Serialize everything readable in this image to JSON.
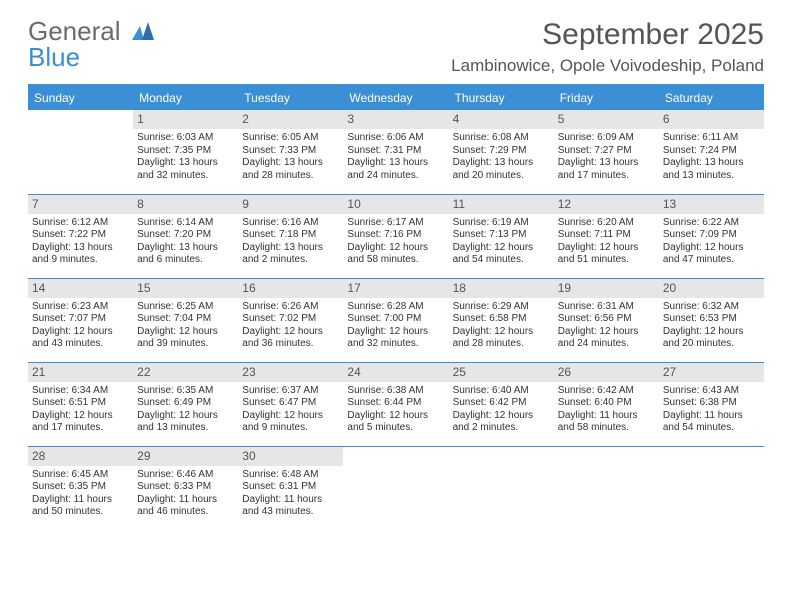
{
  "logo": {
    "top": "General",
    "bottom": "Blue"
  },
  "header": {
    "month_title": "September 2025",
    "location": "Lambinowice, Opole Voivodeship, Poland"
  },
  "columns": [
    "Sunday",
    "Monday",
    "Tuesday",
    "Wednesday",
    "Thursday",
    "Friday",
    "Saturday"
  ],
  "colors": {
    "accent": "#3b8fd4",
    "header_bg": "#3b8fd4",
    "header_text": "#ffffff",
    "daynum_bg": "#e6e6e6",
    "text": "#333333"
  },
  "weeks": [
    [
      {
        "day": "",
        "sunrise": "",
        "sunset": "",
        "daylight": ""
      },
      {
        "day": "1",
        "sunrise": "Sunrise: 6:03 AM",
        "sunset": "Sunset: 7:35 PM",
        "daylight": "Daylight: 13 hours and 32 minutes."
      },
      {
        "day": "2",
        "sunrise": "Sunrise: 6:05 AM",
        "sunset": "Sunset: 7:33 PM",
        "daylight": "Daylight: 13 hours and 28 minutes."
      },
      {
        "day": "3",
        "sunrise": "Sunrise: 6:06 AM",
        "sunset": "Sunset: 7:31 PM",
        "daylight": "Daylight: 13 hours and 24 minutes."
      },
      {
        "day": "4",
        "sunrise": "Sunrise: 6:08 AM",
        "sunset": "Sunset: 7:29 PM",
        "daylight": "Daylight: 13 hours and 20 minutes."
      },
      {
        "day": "5",
        "sunrise": "Sunrise: 6:09 AM",
        "sunset": "Sunset: 7:27 PM",
        "daylight": "Daylight: 13 hours and 17 minutes."
      },
      {
        "day": "6",
        "sunrise": "Sunrise: 6:11 AM",
        "sunset": "Sunset: 7:24 PM",
        "daylight": "Daylight: 13 hours and 13 minutes."
      }
    ],
    [
      {
        "day": "7",
        "sunrise": "Sunrise: 6:12 AM",
        "sunset": "Sunset: 7:22 PM",
        "daylight": "Daylight: 13 hours and 9 minutes."
      },
      {
        "day": "8",
        "sunrise": "Sunrise: 6:14 AM",
        "sunset": "Sunset: 7:20 PM",
        "daylight": "Daylight: 13 hours and 6 minutes."
      },
      {
        "day": "9",
        "sunrise": "Sunrise: 6:16 AM",
        "sunset": "Sunset: 7:18 PM",
        "daylight": "Daylight: 13 hours and 2 minutes."
      },
      {
        "day": "10",
        "sunrise": "Sunrise: 6:17 AM",
        "sunset": "Sunset: 7:16 PM",
        "daylight": "Daylight: 12 hours and 58 minutes."
      },
      {
        "day": "11",
        "sunrise": "Sunrise: 6:19 AM",
        "sunset": "Sunset: 7:13 PM",
        "daylight": "Daylight: 12 hours and 54 minutes."
      },
      {
        "day": "12",
        "sunrise": "Sunrise: 6:20 AM",
        "sunset": "Sunset: 7:11 PM",
        "daylight": "Daylight: 12 hours and 51 minutes."
      },
      {
        "day": "13",
        "sunrise": "Sunrise: 6:22 AM",
        "sunset": "Sunset: 7:09 PM",
        "daylight": "Daylight: 12 hours and 47 minutes."
      }
    ],
    [
      {
        "day": "14",
        "sunrise": "Sunrise: 6:23 AM",
        "sunset": "Sunset: 7:07 PM",
        "daylight": "Daylight: 12 hours and 43 minutes."
      },
      {
        "day": "15",
        "sunrise": "Sunrise: 6:25 AM",
        "sunset": "Sunset: 7:04 PM",
        "daylight": "Daylight: 12 hours and 39 minutes."
      },
      {
        "day": "16",
        "sunrise": "Sunrise: 6:26 AM",
        "sunset": "Sunset: 7:02 PM",
        "daylight": "Daylight: 12 hours and 36 minutes."
      },
      {
        "day": "17",
        "sunrise": "Sunrise: 6:28 AM",
        "sunset": "Sunset: 7:00 PM",
        "daylight": "Daylight: 12 hours and 32 minutes."
      },
      {
        "day": "18",
        "sunrise": "Sunrise: 6:29 AM",
        "sunset": "Sunset: 6:58 PM",
        "daylight": "Daylight: 12 hours and 28 minutes."
      },
      {
        "day": "19",
        "sunrise": "Sunrise: 6:31 AM",
        "sunset": "Sunset: 6:56 PM",
        "daylight": "Daylight: 12 hours and 24 minutes."
      },
      {
        "day": "20",
        "sunrise": "Sunrise: 6:32 AM",
        "sunset": "Sunset: 6:53 PM",
        "daylight": "Daylight: 12 hours and 20 minutes."
      }
    ],
    [
      {
        "day": "21",
        "sunrise": "Sunrise: 6:34 AM",
        "sunset": "Sunset: 6:51 PM",
        "daylight": "Daylight: 12 hours and 17 minutes."
      },
      {
        "day": "22",
        "sunrise": "Sunrise: 6:35 AM",
        "sunset": "Sunset: 6:49 PM",
        "daylight": "Daylight: 12 hours and 13 minutes."
      },
      {
        "day": "23",
        "sunrise": "Sunrise: 6:37 AM",
        "sunset": "Sunset: 6:47 PM",
        "daylight": "Daylight: 12 hours and 9 minutes."
      },
      {
        "day": "24",
        "sunrise": "Sunrise: 6:38 AM",
        "sunset": "Sunset: 6:44 PM",
        "daylight": "Daylight: 12 hours and 5 minutes."
      },
      {
        "day": "25",
        "sunrise": "Sunrise: 6:40 AM",
        "sunset": "Sunset: 6:42 PM",
        "daylight": "Daylight: 12 hours and 2 minutes."
      },
      {
        "day": "26",
        "sunrise": "Sunrise: 6:42 AM",
        "sunset": "Sunset: 6:40 PM",
        "daylight": "Daylight: 11 hours and 58 minutes."
      },
      {
        "day": "27",
        "sunrise": "Sunrise: 6:43 AM",
        "sunset": "Sunset: 6:38 PM",
        "daylight": "Daylight: 11 hours and 54 minutes."
      }
    ],
    [
      {
        "day": "28",
        "sunrise": "Sunrise: 6:45 AM",
        "sunset": "Sunset: 6:35 PM",
        "daylight": "Daylight: 11 hours and 50 minutes."
      },
      {
        "day": "29",
        "sunrise": "Sunrise: 6:46 AM",
        "sunset": "Sunset: 6:33 PM",
        "daylight": "Daylight: 11 hours and 46 minutes."
      },
      {
        "day": "30",
        "sunrise": "Sunrise: 6:48 AM",
        "sunset": "Sunset: 6:31 PM",
        "daylight": "Daylight: 11 hours and 43 minutes."
      },
      {
        "day": "",
        "sunrise": "",
        "sunset": "",
        "daylight": ""
      },
      {
        "day": "",
        "sunrise": "",
        "sunset": "",
        "daylight": ""
      },
      {
        "day": "",
        "sunrise": "",
        "sunset": "",
        "daylight": ""
      },
      {
        "day": "",
        "sunrise": "",
        "sunset": "",
        "daylight": ""
      }
    ]
  ]
}
